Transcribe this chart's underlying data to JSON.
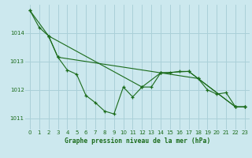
{
  "title": "Graphe pression niveau de la mer (hPa)",
  "bg_color": "#cce8ee",
  "grid_color": "#aad0d8",
  "line_color": "#1a6b1a",
  "xlim": [
    -0.5,
    23.5
  ],
  "ylim": [
    1010.6,
    1015.0
  ],
  "yticks": [
    1011,
    1012,
    1013,
    1014
  ],
  "xticks": [
    0,
    1,
    2,
    3,
    4,
    5,
    6,
    7,
    8,
    9,
    10,
    11,
    12,
    13,
    14,
    15,
    16,
    17,
    18,
    19,
    20,
    21,
    22,
    23
  ],
  "series1_x": [
    0,
    1,
    2,
    3,
    4,
    5,
    6,
    7,
    8,
    9,
    10,
    11,
    12,
    13,
    14,
    15,
    16,
    17,
    18,
    19,
    20,
    21,
    22,
    23
  ],
  "series1_y": [
    1014.8,
    1014.2,
    1013.9,
    1013.15,
    1012.7,
    1012.55,
    1011.8,
    1011.55,
    1011.25,
    1011.15,
    1012.1,
    1011.75,
    1012.1,
    1012.1,
    1012.6,
    1012.6,
    1012.65,
    1012.65,
    1012.4,
    1012.0,
    1011.85,
    1011.9,
    1011.4,
    1011.4
  ],
  "series2_x": [
    2,
    3,
    14,
    17,
    22,
    23
  ],
  "series2_y": [
    1013.9,
    1013.15,
    1012.6,
    1012.65,
    1011.4,
    1011.4
  ],
  "series3_x": [
    0,
    2,
    12,
    14,
    18,
    22,
    23
  ],
  "series3_y": [
    1014.8,
    1013.9,
    1012.1,
    1012.6,
    1012.4,
    1011.4,
    1011.4
  ]
}
